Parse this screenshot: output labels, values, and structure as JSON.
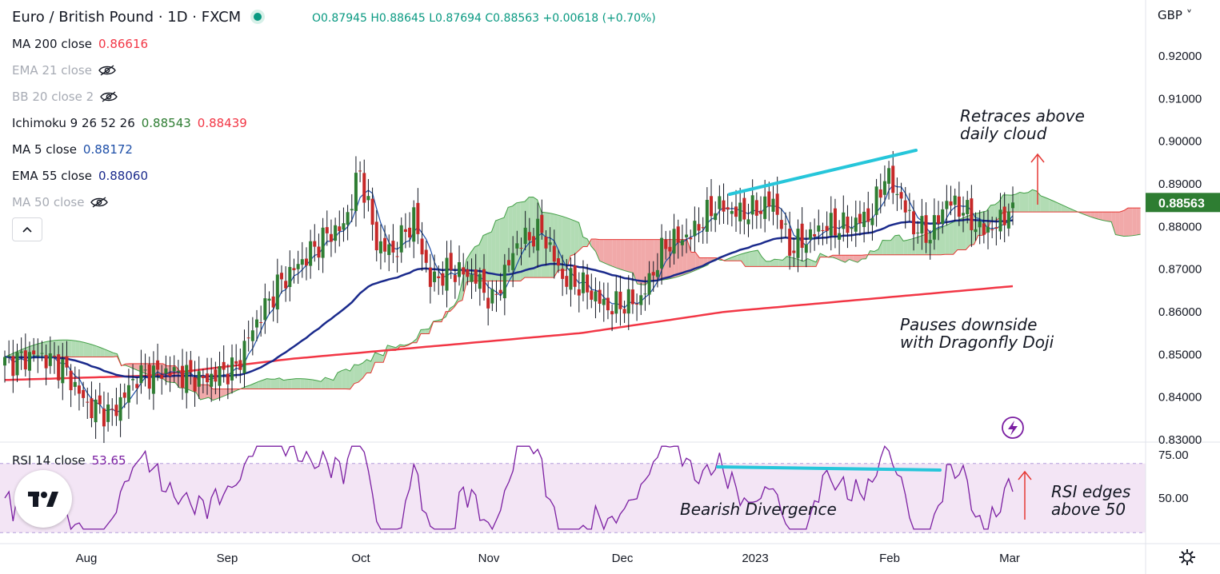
{
  "header": {
    "symbol": "Euro / British Pound · 1D · FXCM",
    "open": "O0.87945",
    "high": "H0.88645",
    "low": "L0.87694",
    "close": "C0.88563",
    "change": "+0.00618 (+0.70%)",
    "currency": "GBP"
  },
  "indicators": [
    {
      "label": "MA 200 close",
      "values": [
        "0.86616"
      ],
      "colors": [
        "#f23645"
      ],
      "hidden": false
    },
    {
      "label": "EMA 21 close",
      "values": [],
      "colors": [],
      "hidden": true
    },
    {
      "label": "BB 20 close 2",
      "values": [],
      "colors": [],
      "hidden": true
    },
    {
      "label": "Ichimoku 9 26 52 26",
      "values": [
        "0.88543",
        "0.88439"
      ],
      "colors": [
        "#2e7d32",
        "#f23645"
      ],
      "hidden": false
    },
    {
      "label": "MA 5 close",
      "values": [
        "0.88172"
      ],
      "colors": [
        "#1e4fa8"
      ],
      "hidden": false
    },
    {
      "label": "EMA 55 close",
      "values": [
        "0.88060"
      ],
      "colors": [
        "#1a2a8c"
      ],
      "hidden": false
    },
    {
      "label": "MA 50 close",
      "values": [],
      "colors": [],
      "hidden": true
    }
  ],
  "rsi": {
    "label": "RSI 14 close",
    "value": "53.65",
    "color": "#7b1fa2"
  },
  "annotations": {
    "retraces": [
      "Retraces above",
      "daily cloud"
    ],
    "pauses": [
      "Pauses downside",
      "with Dragonfly Doji"
    ],
    "bearish": "Bearish Divergence",
    "rsi_edges": [
      "RSI edges",
      "above 50"
    ]
  },
  "price_badge": "0.88563",
  "colors": {
    "up": "#2e7d32",
    "down": "#c62828",
    "cloud_bull": "#a5d6a7",
    "cloud_bear": "#ef9a9a",
    "ma200": "#f23645",
    "ema55": "#1a2a8c",
    "ma5": "#1e4fa8",
    "rsi_line": "#7b1fa2",
    "rsi_band": "#f3e5f5",
    "divergence": "#26c6da"
  },
  "chart_data": [
    {
      "type": "candlestick",
      "title": "",
      "x_labels": [
        "Aug",
        "Sep",
        "Oct",
        "Nov",
        "Dec",
        "2023",
        "Feb",
        "Mar"
      ],
      "y_ticks": [
        "0.92000",
        "0.91000",
        "0.90000",
        "0.89000",
        "0.88000",
        "0.87000",
        "0.86000",
        "0.85000",
        "0.84000",
        "0.83000"
      ],
      "ylim": [
        0.825,
        0.93
      ],
      "series": [
        {
          "name": "EUR/GBP close",
          "approx_close_by_month_start": [
            0.846,
            0.858,
            0.878,
            0.867,
            0.866,
            0.888,
            0.886,
            0.886
          ]
        },
        {
          "name": "MA 200",
          "approx": [
            0.844,
            0.845,
            0.849,
            0.852,
            0.855,
            0.86,
            0.863,
            0.866
          ]
        }
      ],
      "last_close": 0.88563
    },
    {
      "type": "line",
      "title": "",
      "y_ticks": [
        "75.00",
        "50.00"
      ],
      "ylim": [
        30,
        82
      ],
      "bands": [
        30,
        70
      ],
      "last_value": 53.65
    }
  ]
}
